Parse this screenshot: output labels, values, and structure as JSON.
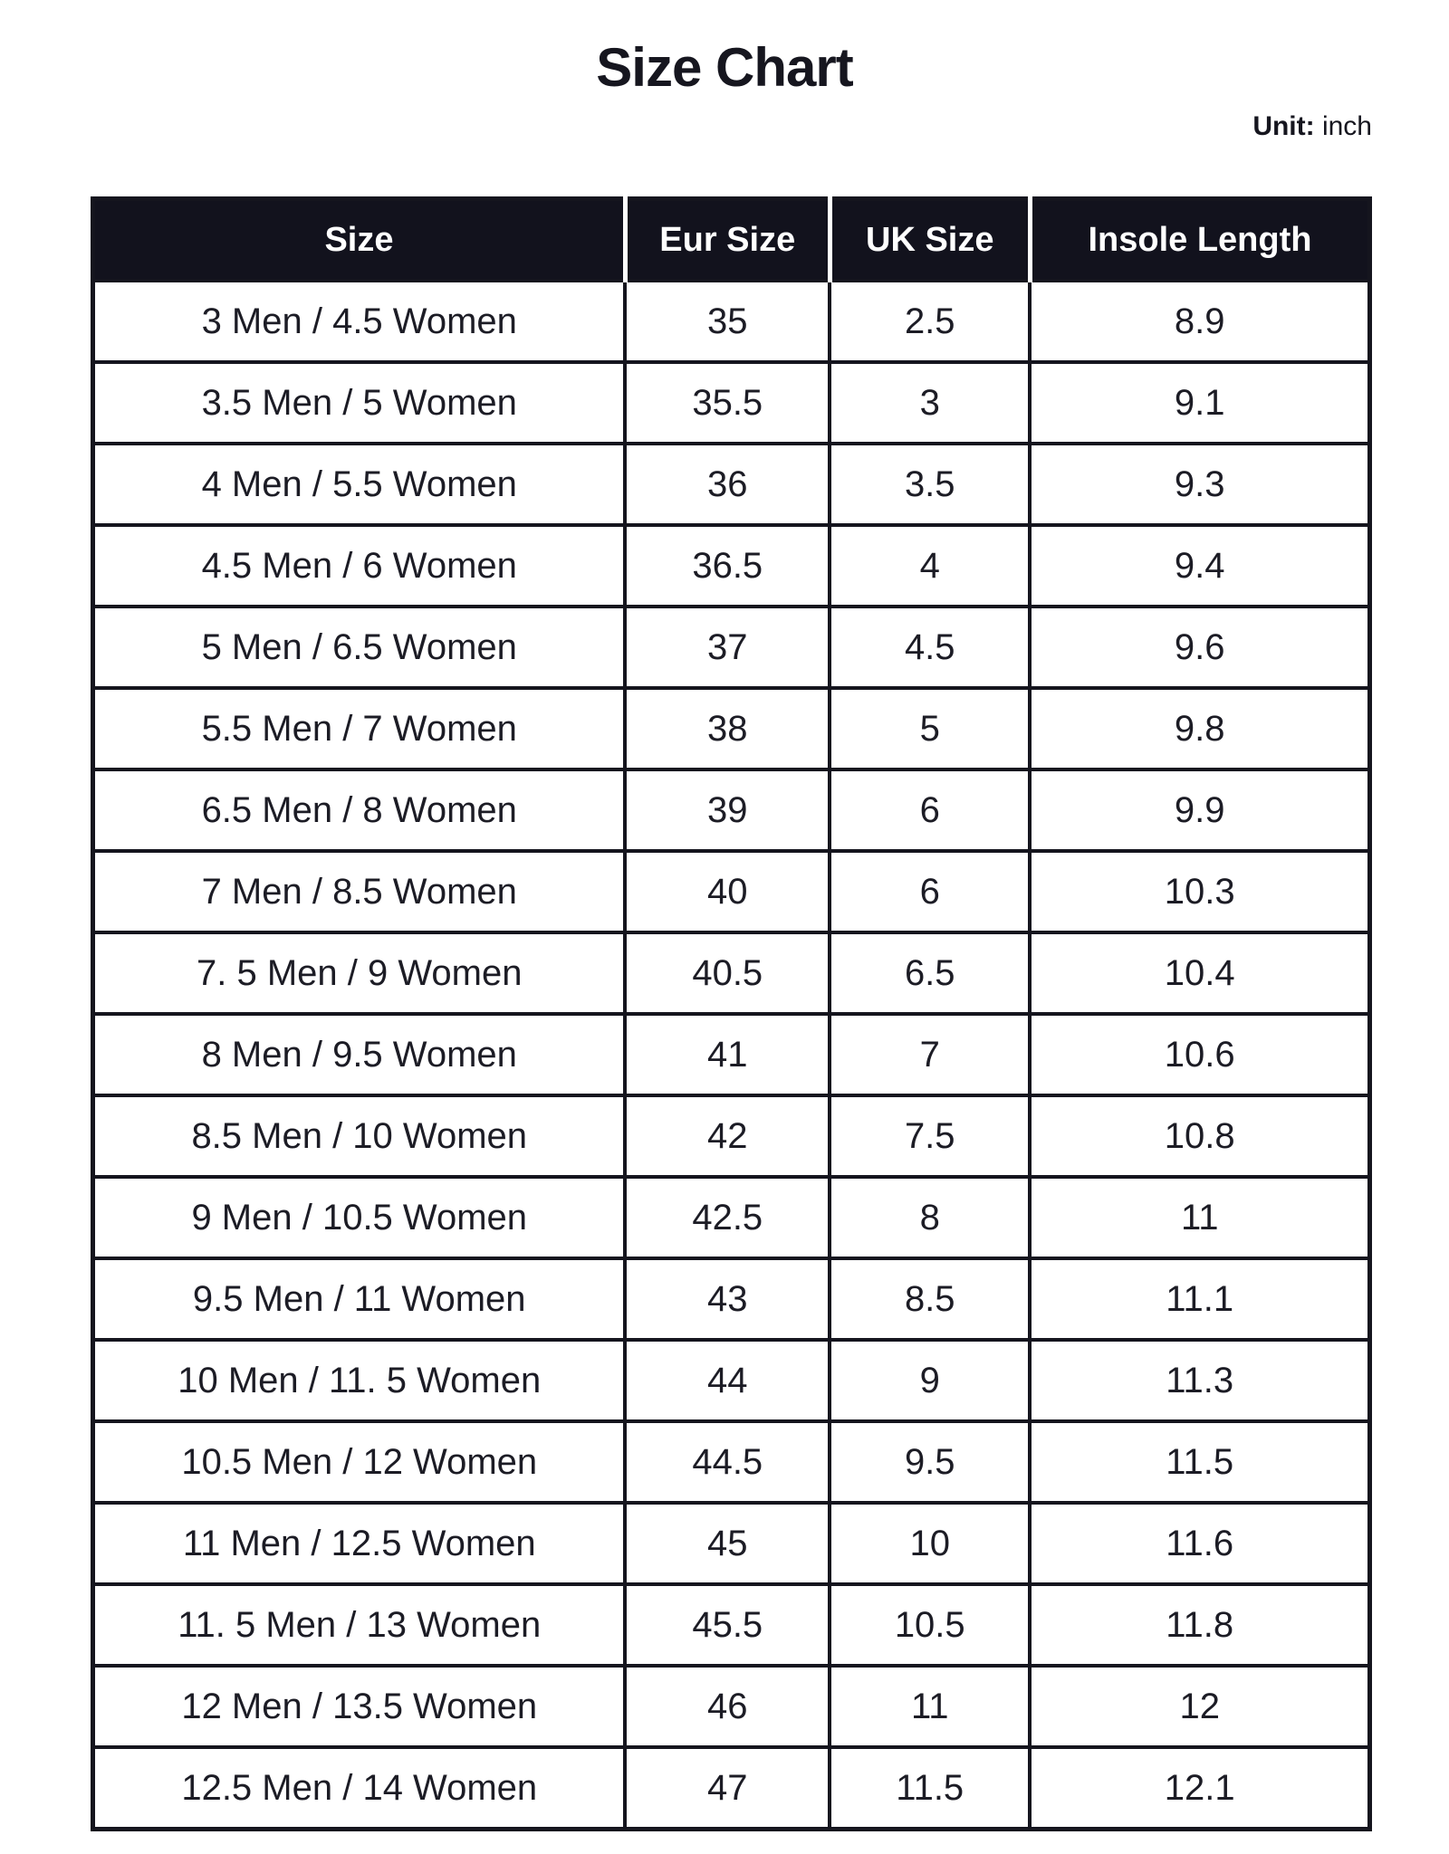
{
  "page": {
    "title": "Size Chart",
    "unit_label": "Unit:",
    "unit_value": " inch"
  },
  "table": {
    "columns": [
      "Size",
      "Eur Size",
      "UK Size",
      "Insole Length"
    ],
    "rows": [
      [
        "3 Men / 4.5 Women",
        "35",
        "2.5",
        "8.9"
      ],
      [
        "3.5 Men / 5 Women",
        "35.5",
        "3",
        "9.1"
      ],
      [
        "4 Men / 5.5 Women",
        "36",
        "3.5",
        "9.3"
      ],
      [
        "4.5 Men / 6 Women",
        "36.5",
        "4",
        "9.4"
      ],
      [
        "5 Men / 6.5 Women",
        "37",
        "4.5",
        "9.6"
      ],
      [
        "5.5 Men / 7 Women",
        "38",
        "5",
        "9.8"
      ],
      [
        "6.5 Men / 8 Women",
        "39",
        "6",
        "9.9"
      ],
      [
        "7 Men / 8.5 Women",
        "40",
        "6",
        "10.3"
      ],
      [
        "7. 5 Men / 9 Women",
        "40.5",
        "6.5",
        "10.4"
      ],
      [
        "8 Men / 9.5 Women",
        "41",
        "7",
        "10.6"
      ],
      [
        "8.5 Men / 10 Women",
        "42",
        "7.5",
        "10.8"
      ],
      [
        "9 Men / 10.5 Women",
        "42.5",
        "8",
        "11"
      ],
      [
        "9.5 Men / 11 Women",
        "43",
        "8.5",
        "11.1"
      ],
      [
        "10 Men / 11. 5 Women",
        "44",
        "9",
        "11.3"
      ],
      [
        "10.5 Men / 12 Women",
        "44.5",
        "9.5",
        "11.5"
      ],
      [
        "11 Men / 12.5 Women",
        "45",
        "10",
        "11.6"
      ],
      [
        "11. 5 Men / 13 Women",
        "45.5",
        "10.5",
        "11.8"
      ],
      [
        "12 Men / 13.5 Women",
        "46",
        "11",
        "12"
      ],
      [
        "12.5 Men / 14 Women",
        "47",
        "11.5",
        "12.1"
      ]
    ]
  },
  "colors": {
    "header_bg": "#12121d",
    "header_text": "#ffffff",
    "border": "#15151e",
    "body_text": "#1c1c25",
    "page_bg": "#ffffff"
  }
}
